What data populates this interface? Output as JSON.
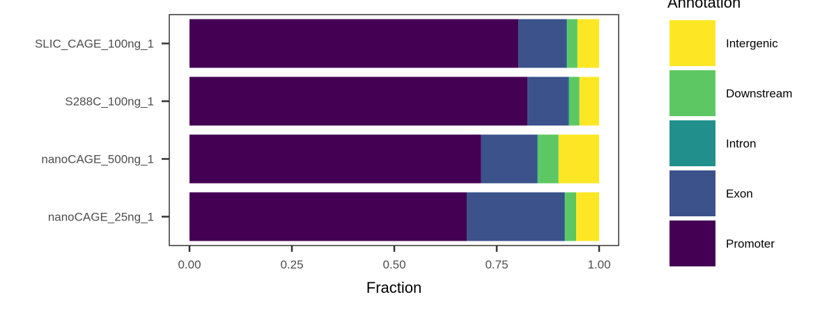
{
  "chart_data": {
    "type": "bar",
    "orientation": "horizontal",
    "stacked": true,
    "title": "",
    "xlabel": "Fraction",
    "ylabel": "",
    "xlim": [
      0,
      1
    ],
    "xticks": [
      0,
      0.25,
      0.5,
      0.75,
      1
    ],
    "xtick_labels": [
      "0.00",
      "0.25",
      "0.50",
      "0.75",
      "1.00"
    ],
    "grid": false,
    "legend": {
      "title": "Annotation",
      "position": "right",
      "order": [
        "Intergenic",
        "Downstream",
        "Intron",
        "Exon",
        "Promoter"
      ]
    },
    "categories": [
      "SLIC_CAGE_100ng_1",
      "S288C_100ng_1",
      "nanoCAGE_500ng_1",
      "nanoCAGE_25ng_1"
    ],
    "series": [
      {
        "name": "Promoter",
        "color": "#440154",
        "values": [
          0.803,
          0.825,
          0.712,
          0.677
        ]
      },
      {
        "name": "Exon",
        "color": "#3B528B",
        "values": [
          0.117,
          0.1,
          0.137,
          0.238
        ]
      },
      {
        "name": "Intron",
        "color": "#21908C",
        "values": [
          0.002,
          0.002,
          0.002,
          0.002
        ]
      },
      {
        "name": "Downstream",
        "color": "#5DC863",
        "values": [
          0.025,
          0.025,
          0.05,
          0.027
        ]
      },
      {
        "name": "Intergenic",
        "color": "#FDE725",
        "values": [
          0.053,
          0.048,
          0.099,
          0.056
        ]
      }
    ]
  }
}
